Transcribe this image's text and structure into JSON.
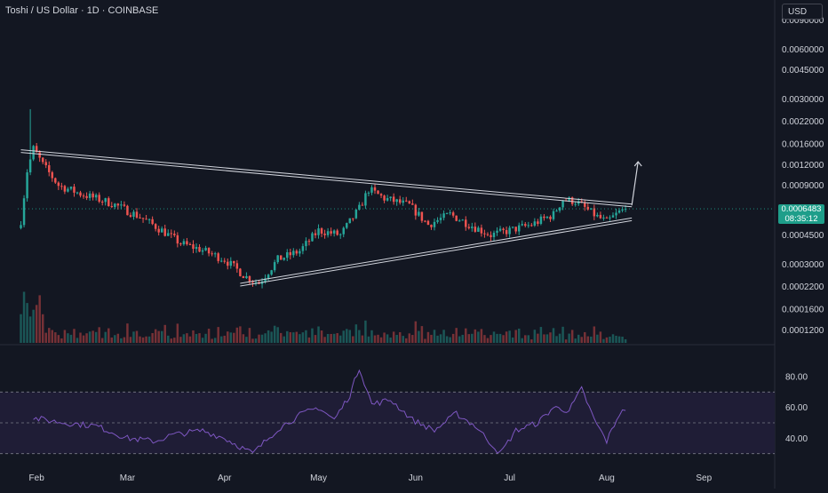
{
  "header": {
    "title": "Toshi / US Dollar · 1D · COINBASE",
    "currency_button": "USD"
  },
  "last_price": {
    "value": "0.0006483",
    "countdown": "08:35:12"
  },
  "colors": {
    "background": "#131722",
    "up": "#26a69a",
    "down": "#ef5350",
    "trendline": "#d1d4dc",
    "rsi_line": "#7e57c2",
    "rsi_band_fill": "#1f1d36",
    "price_tag": "#1e9e8a"
  },
  "chart_data": [
    {
      "type": "candlestick",
      "title": "Toshi / US Dollar · 1D · COINBASE",
      "scale": "log",
      "ylim": [
        0.0001,
        0.0093
      ],
      "y_ticks": [
        "0.0090000",
        "0.0060000",
        "0.0045000",
        "0.0030000",
        "0.0022000",
        "0.0016000",
        "0.0012000",
        "0.0009000",
        "0.0006483",
        "0.0004500",
        "0.0003000",
        "0.0002200",
        "0.0001600",
        "0.0001200"
      ],
      "x_ticks": [
        "Feb",
        "Mar",
        "Apr",
        "May",
        "Jun",
        "Jul",
        "Aug",
        "Sep"
      ],
      "x_range": [
        "2024-01-26",
        "2024-09-10"
      ],
      "last_price": 0.0006483,
      "approx_close_path": [
        {
          "date": "2024-01-27",
          "close": 0.00055
        },
        {
          "date": "2024-01-29",
          "close": 0.0011
        },
        {
          "date": "2024-01-31",
          "close": 0.0015
        },
        {
          "date": "2024-02-03",
          "close": 0.0012
        },
        {
          "date": "2024-02-08",
          "close": 0.0009
        },
        {
          "date": "2024-02-15",
          "close": 0.0008
        },
        {
          "date": "2024-02-25",
          "close": 0.0007
        },
        {
          "date": "2024-03-05",
          "close": 0.00058
        },
        {
          "date": "2024-03-12",
          "close": 0.00048
        },
        {
          "date": "2024-03-18",
          "close": 0.0004
        },
        {
          "date": "2024-03-24",
          "close": 0.00037
        },
        {
          "date": "2024-04-01",
          "close": 0.00032
        },
        {
          "date": "2024-04-08",
          "close": 0.00025
        },
        {
          "date": "2024-04-12",
          "close": 0.00023
        },
        {
          "date": "2024-04-18",
          "close": 0.00032
        },
        {
          "date": "2024-04-25",
          "close": 0.00036
        },
        {
          "date": "2024-05-01",
          "close": 0.00048
        },
        {
          "date": "2024-05-08",
          "close": 0.00045
        },
        {
          "date": "2024-05-14",
          "close": 0.00065
        },
        {
          "date": "2024-05-17",
          "close": 0.00085
        },
        {
          "date": "2024-05-22",
          "close": 0.00075
        },
        {
          "date": "2024-05-30",
          "close": 0.00068
        },
        {
          "date": "2024-06-05",
          "close": 0.00052
        },
        {
          "date": "2024-06-12",
          "close": 0.0006
        },
        {
          "date": "2024-06-20",
          "close": 0.0005
        },
        {
          "date": "2024-06-25",
          "close": 0.00045
        },
        {
          "date": "2024-07-01",
          "close": 0.00048
        },
        {
          "date": "2024-07-08",
          "close": 0.00052
        },
        {
          "date": "2024-07-15",
          "close": 0.0006
        },
        {
          "date": "2024-07-18",
          "close": 0.00074
        },
        {
          "date": "2024-07-22",
          "close": 0.00072
        },
        {
          "date": "2024-07-29",
          "close": 0.00058
        },
        {
          "date": "2024-08-01",
          "close": 0.00054
        },
        {
          "date": "2024-08-05",
          "close": 0.00062
        },
        {
          "date": "2024-08-07",
          "close": 0.0006483
        }
      ],
      "drawings": {
        "upper_trendline": [
          {
            "date": "2024-01-27",
            "price": 0.00145
          },
          {
            "date": "2024-08-09",
            "price": 0.00068
          }
        ],
        "lower_trendline": [
          {
            "date": "2024-04-06",
            "price": 0.000225
          },
          {
            "date": "2024-08-09",
            "price": 0.00056
          }
        ],
        "breakout_arrow": [
          {
            "date": "2024-08-09",
            "price": 0.00068
          },
          {
            "date": "2024-08-11",
            "price": 0.00125
          }
        ]
      }
    },
    {
      "type": "line",
      "name": "RSI",
      "ylim": [
        20,
        95
      ],
      "y_ticks": [
        "80.00",
        "60.00",
        "40.00"
      ],
      "bands": [
        30,
        50,
        70
      ],
      "approx_values": [
        {
          "date": "2024-01-31",
          "value": 53
        },
        {
          "date": "2024-02-10",
          "value": 50
        },
        {
          "date": "2024-02-20",
          "value": 48
        },
        {
          "date": "2024-03-01",
          "value": 40
        },
        {
          "date": "2024-03-10",
          "value": 38
        },
        {
          "date": "2024-03-15",
          "value": 42
        },
        {
          "date": "2024-03-25",
          "value": 45
        },
        {
          "date": "2024-04-01",
          "value": 40
        },
        {
          "date": "2024-04-10",
          "value": 30
        },
        {
          "date": "2024-04-18",
          "value": 46
        },
        {
          "date": "2024-04-25",
          "value": 55
        },
        {
          "date": "2024-05-01",
          "value": 60
        },
        {
          "date": "2024-05-06",
          "value": 52
        },
        {
          "date": "2024-05-11",
          "value": 68
        },
        {
          "date": "2024-05-14",
          "value": 86
        },
        {
          "date": "2024-05-18",
          "value": 62
        },
        {
          "date": "2024-05-24",
          "value": 65
        },
        {
          "date": "2024-05-31",
          "value": 52
        },
        {
          "date": "2024-06-07",
          "value": 45
        },
        {
          "date": "2024-06-14",
          "value": 56
        },
        {
          "date": "2024-06-20",
          "value": 48
        },
        {
          "date": "2024-06-28",
          "value": 30
        },
        {
          "date": "2024-07-03",
          "value": 45
        },
        {
          "date": "2024-07-10",
          "value": 50
        },
        {
          "date": "2024-07-15",
          "value": 60
        },
        {
          "date": "2024-07-20",
          "value": 58
        },
        {
          "date": "2024-07-24",
          "value": 72
        },
        {
          "date": "2024-07-28",
          "value": 52
        },
        {
          "date": "2024-08-01",
          "value": 38
        },
        {
          "date": "2024-08-05",
          "value": 56
        },
        {
          "date": "2024-08-07",
          "value": 58
        }
      ]
    }
  ]
}
